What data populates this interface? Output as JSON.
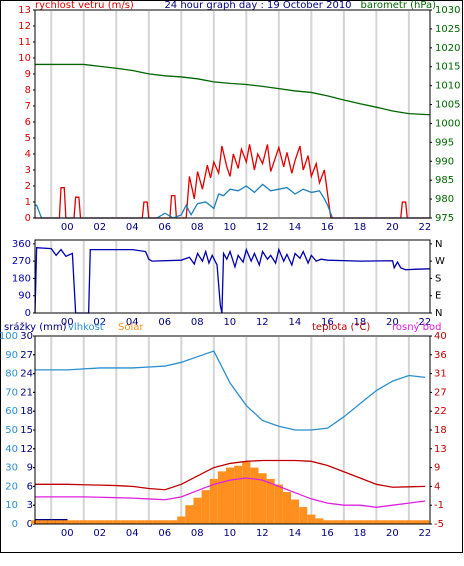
{
  "chart_data": [
    {
      "type": "line",
      "title": "24 hour graph day : 19 October 2010",
      "y_label": "rychlost vetru (m/s)",
      "y2_label": "barometr (hPa)",
      "xlim": [
        -1,
        23.3
      ],
      "xticks": [
        {
          "value": 0,
          "label": "00"
        },
        {
          "value": 2,
          "label": "02"
        },
        {
          "value": 4,
          "label": "04"
        },
        {
          "value": 6,
          "label": "06"
        },
        {
          "value": 8,
          "label": "08"
        },
        10,
        12,
        14,
        16,
        18,
        20,
        22
      ],
      "ylim": [
        0,
        13
      ],
      "yticks": [
        0,
        1,
        2,
        3,
        4,
        5,
        6,
        7,
        8,
        9,
        10,
        11,
        12,
        13
      ],
      "y2lim": [
        975,
        1030
      ],
      "y2ticks": [
        975,
        980,
        985,
        990,
        995,
        1000,
        1005,
        1010,
        1015,
        1020,
        1025,
        1030
      ],
      "grid": true,
      "series": [
        {
          "color": "#e00000",
          "x": [
            -1,
            0.5,
            0.6,
            0.8,
            0.9,
            1.4,
            1.5,
            1.7,
            1.8,
            5.6,
            5.7,
            5.9,
            6.0,
            7.3,
            7.4,
            7.6,
            7.7,
            8.3,
            8.5,
            8.8,
            9.0,
            9.3,
            9.6,
            9.8,
            10.0,
            10.3,
            10.5,
            10.8,
            11.0,
            11.2,
            11.5,
            11.7,
            12.0,
            12.2,
            12.5,
            12.7,
            13.0,
            13.3,
            13.5,
            13.8,
            14.0,
            14.3,
            14.5,
            14.8,
            15.0,
            15.3,
            15.5,
            15.8,
            16.0,
            16.3,
            16.5,
            16.8,
            17.0,
            17.2,
            21.5,
            21.6,
            21.8,
            21.9,
            23.3
          ],
          "values": [
            0,
            0,
            1.9,
            1.9,
            0,
            0,
            1.3,
            1.3,
            0,
            0,
            1,
            1,
            0,
            0,
            1.4,
            1.4,
            0,
            0,
            2.6,
            1.2,
            2.9,
            1.8,
            3.3,
            2.5,
            3.5,
            2.8,
            4.5,
            3.2,
            2.6,
            4.0,
            3.1,
            4.3,
            3.5,
            4.6,
            3.0,
            4.0,
            3.4,
            4.6,
            2.9,
            3.8,
            4.4,
            3.2,
            4.1,
            2.8,
            3.6,
            4.5,
            3.0,
            3.9,
            2.6,
            3.4,
            2.2,
            3.0,
            1.5,
            0,
            0,
            1,
            1,
            0,
            0
          ]
        },
        {
          "color": "#1f80b8",
          "x": [
            -1,
            -0.9,
            -0.6,
            0,
            6.5,
            7.0,
            7.5,
            8.0,
            8.3,
            8.6,
            9.0,
            9.5,
            10.0,
            10.3,
            10.6,
            11.0,
            11.5,
            12.0,
            12.5,
            13.0,
            13.5,
            14.0,
            14.5,
            15.0,
            15.5,
            16.0,
            16.5,
            16.8,
            17.0,
            17.3,
            23.3
          ],
          "values": [
            0.8,
            0.8,
            0,
            0,
            0,
            0.3,
            0,
            0.2,
            0.8,
            0.2,
            0.9,
            1.0,
            0.6,
            1.5,
            1.4,
            1.8,
            1.7,
            2.0,
            1.6,
            2.1,
            1.7,
            1.8,
            1.9,
            1.5,
            1.8,
            1.6,
            1.7,
            1.2,
            0.8,
            0,
            0
          ]
        },
        {
          "color": "#006600",
          "axis": "y2",
          "x": [
            -1,
            0,
            1,
            2,
            3,
            4,
            5,
            6,
            7,
            8,
            9,
            10,
            11,
            12,
            13,
            14,
            15,
            16,
            17,
            18,
            19,
            20,
            21,
            22,
            23.3
          ],
          "values": [
            1015.6,
            1015.6,
            1015.6,
            1015.6,
            1015.1,
            1014.6,
            1014,
            1013.1,
            1012.6,
            1012.3,
            1011.8,
            1011,
            1010.6,
            1010.3,
            1009.8,
            1009.2,
            1008.6,
            1008.2,
            1007.3,
            1006.2,
            1005.2,
            1004.3,
            1003.3,
            1002.6,
            1002.3
          ]
        }
      ]
    },
    {
      "type": "line",
      "xlim": [
        -1,
        23.3
      ],
      "xticks": [
        {
          "value": 0,
          "label": "00"
        },
        {
          "value": 2,
          "label": "02"
        },
        {
          "value": 4,
          "label": "04"
        },
        {
          "value": 6,
          "label": "06"
        },
        {
          "value": 8,
          "label": "08"
        },
        10,
        12,
        14,
        16,
        18,
        20,
        22
      ],
      "ylim": [
        0,
        380
      ],
      "yticks": [
        0,
        90,
        180,
        270,
        360
      ],
      "y2lim": [
        0,
        380
      ],
      "y2ticks": [
        {
          "value": 0,
          "label": "N"
        },
        {
          "value": 90,
          "label": "E"
        },
        {
          "value": 180,
          "label": "S"
        },
        {
          "value": 270,
          "label": "W"
        },
        {
          "value": 360,
          "label": "N"
        }
      ],
      "grid": true,
      "series": [
        {
          "color": "#0000b0",
          "x": [
            -1,
            -0.9,
            0,
            0.3,
            0.6,
            0.9,
            1.3,
            1.5,
            2.3,
            2.4,
            5.0,
            5.8,
            6.0,
            6.2,
            8.0,
            8.5,
            8.8,
            9.0,
            9.3,
            9.5,
            9.7,
            9.9,
            10.2,
            10.4,
            10.5,
            10.6,
            10.8,
            11.0,
            11.3,
            11.5,
            11.8,
            12.0,
            12.3,
            12.5,
            12.8,
            13.0,
            13.3,
            13.5,
            13.8,
            14.0,
            14.3,
            14.5,
            14.8,
            15.0,
            15.3,
            15.5,
            15.8,
            16.0,
            16.3,
            16.6,
            17.0,
            19.0,
            21.0,
            21.1,
            21.3,
            21.5,
            21.8,
            22.5,
            23.3
          ],
          "values": [
            0,
            340,
            335,
            300,
            330,
            295,
            310,
            0,
            0,
            330,
            330,
            320,
            280,
            270,
            275,
            290,
            255,
            310,
            270,
            320,
            260,
            300,
            250,
            40,
            0,
            310,
            280,
            320,
            240,
            300,
            265,
            330,
            270,
            310,
            250,
            320,
            280,
            300,
            260,
            330,
            270,
            305,
            250,
            310,
            285,
            320,
            260,
            300,
            270,
            280,
            275,
            270,
            272,
            235,
            265,
            235,
            225,
            228,
            230
          ]
        }
      ]
    },
    {
      "type": "line",
      "xlim": [
        -1,
        23.3
      ],
      "xticks": [
        {
          "value": 0,
          "label": "00"
        },
        {
          "value": 2,
          "label": "02"
        },
        {
          "value": 4,
          "label": "04"
        },
        {
          "value": 6,
          "label": "06"
        },
        {
          "value": 8,
          "label": "08"
        },
        10,
        12,
        14,
        16,
        18,
        20,
        22
      ],
      "ylim": [
        0,
        100
      ],
      "yticks": [
        0,
        10,
        20,
        30,
        40,
        50,
        60,
        70,
        80,
        90,
        100
      ],
      "y3lim": [
        0,
        30
      ],
      "y3ticks": [
        0,
        3,
        6,
        9,
        12,
        15,
        18,
        21,
        24,
        27,
        30
      ],
      "y2lim": [
        -5,
        40
      ],
      "y2ticks": [
        -5,
        {
          "value": -0.5,
          "label": "-1"
        },
        4,
        {
          "value": 8.5,
          "label": "9"
        },
        13,
        {
          "value": 17.5,
          "label": "18"
        },
        22,
        {
          "value": 26.5,
          "label": "27"
        },
        31,
        {
          "value": 35.5,
          "label": "36"
        },
        40
      ],
      "grid": true,
      "series": [
        {
          "name": "srážky (mm)",
          "color": "#000080",
          "axis": "y3",
          "style": "bar",
          "x": [
            -0.5,
            0.5
          ],
          "values": [
            0.8,
            0.8
          ]
        },
        {
          "name": "vlhkost",
          "color": "#2a8fd0",
          "x": [
            -1,
            0,
            1,
            2,
            3,
            4,
            5,
            6,
            7,
            8,
            9,
            10,
            11,
            12,
            13,
            14,
            15,
            16,
            17,
            18,
            19,
            20,
            21,
            22,
            23
          ],
          "values": [
            82,
            82,
            82,
            82.5,
            83,
            83,
            83,
            83.5,
            84,
            86,
            89,
            92,
            75,
            63,
            55,
            52,
            50,
            50,
            51,
            57,
            64,
            71,
            76,
            79,
            78
          ]
        },
        {
          "name": "Solar",
          "color": "#ff9020",
          "style": "bar",
          "x": [
            -1,
            -0.5,
            0,
            0.5,
            1,
            1.5,
            2,
            2.5,
            3,
            3.5,
            4,
            4.5,
            5,
            5.5,
            6,
            6.5,
            7,
            7.5,
            8,
            8.5,
            9,
            9.5,
            10,
            10.5,
            11,
            11.5,
            12,
            12.5,
            13,
            13.5,
            14,
            14.5,
            15,
            15.5,
            16,
            16.5,
            17,
            17.5,
            18,
            18.5,
            19,
            19.5,
            20,
            20.5,
            21,
            21.5,
            22,
            22.5,
            23
          ],
          "values": [
            2,
            2,
            2,
            2,
            2,
            2,
            2,
            2,
            2,
            2,
            2,
            2,
            2,
            2,
            2,
            2,
            2,
            2,
            4,
            10,
            14,
            18,
            24,
            28,
            30,
            31,
            33,
            30,
            27,
            24,
            21,
            17,
            13,
            9,
            5,
            3,
            2,
            2,
            2,
            2,
            2,
            2,
            2,
            2,
            2,
            2,
            2,
            2,
            2
          ]
        },
        {
          "name": "teplota (°C)",
          "color": "#c00000",
          "axis": "y2",
          "x": [
            -1,
            0,
            1,
            2,
            3,
            4,
            5,
            6,
            7,
            8,
            9,
            10,
            11,
            12,
            13,
            14,
            15,
            16,
            17,
            18,
            19,
            20,
            21,
            22,
            23
          ],
          "values": [
            4.5,
            4.5,
            4.5,
            4.4,
            4.3,
            4.2,
            4,
            3.5,
            3.2,
            4.5,
            6.5,
            8.5,
            9.5,
            10,
            10.2,
            10.2,
            10.2,
            10,
            9,
            7.5,
            6,
            4.5,
            3.8,
            3.9,
            4
          ]
        },
        {
          "name": "rosný bod",
          "color": "#e020e0",
          "axis": "y2",
          "x": [
            -1,
            0,
            1,
            2,
            3,
            4,
            5,
            6,
            7,
            8,
            9,
            10,
            11,
            12,
            13,
            14,
            15,
            16,
            17,
            18,
            19,
            20,
            21,
            22,
            23
          ],
          "values": [
            1.5,
            1.5,
            1.5,
            1.5,
            1.4,
            1.3,
            1.2,
            1.0,
            0.8,
            1.5,
            3,
            4.5,
            5.5,
            6,
            5.5,
            4,
            2.5,
            1,
            0,
            -0.5,
            -0.5,
            -1,
            -0.5,
            0,
            0.5
          ]
        }
      ]
    }
  ]
}
